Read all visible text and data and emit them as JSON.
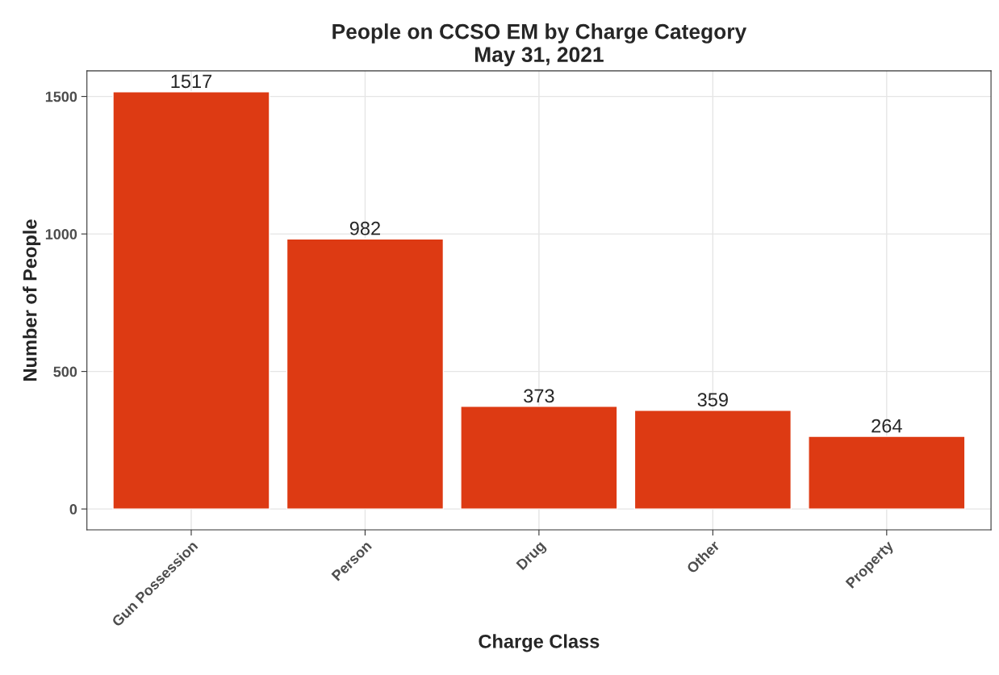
{
  "chart_data": {
    "type": "bar",
    "title": "People on CCSO EM by Charge Category\nMay 31, 2021",
    "xlabel": "Charge Class",
    "ylabel": "Number of People",
    "categories": [
      "Gun Possession",
      "Person",
      "Drug",
      "Other",
      "Property"
    ],
    "values": [
      1517,
      982,
      373,
      359,
      264
    ],
    "color": "#dd3a13",
    "ylim": [
      -76,
      1593
    ],
    "yticks": [
      0,
      500,
      1000,
      1500
    ],
    "grid": true,
    "data_labels": true
  }
}
